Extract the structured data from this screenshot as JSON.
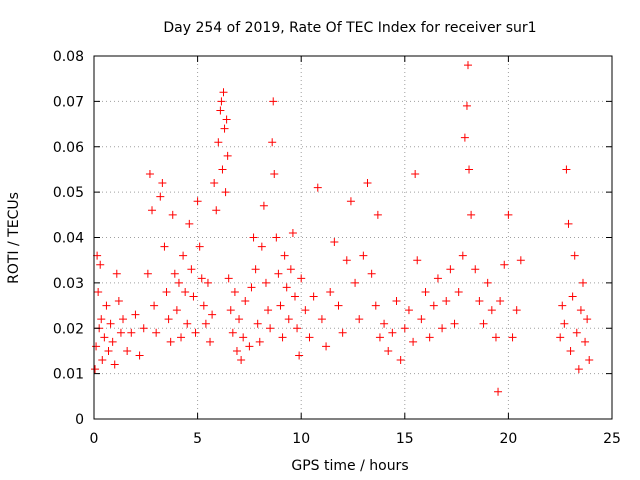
{
  "chart_data": {
    "type": "scatter",
    "title": "Day 254 of 2019, Rate Of TEC Index for receiver sur1",
    "xlabel": "GPS time / hours",
    "ylabel": "ROTI / TECUs",
    "xlim": [
      0,
      25
    ],
    "ylim": [
      0,
      0.08
    ],
    "xticks": [
      0,
      5,
      10,
      15,
      20,
      25
    ],
    "xtick_labels": [
      "0",
      "5",
      "10",
      "15",
      "20",
      "25"
    ],
    "yticks": [
      0,
      0.01,
      0.02,
      0.03,
      0.04,
      0.05,
      0.06,
      0.07,
      0.08
    ],
    "ytick_labels": [
      "0",
      "0.01",
      "0.02",
      "0.03",
      "0.04",
      "0.05",
      "0.06",
      "0.07",
      "0.08"
    ],
    "grid": true,
    "marker": "plus",
    "color": "#ff0000",
    "series": [
      {
        "points": [
          [
            0.05,
            0.011
          ],
          [
            0.1,
            0.016
          ],
          [
            0.15,
            0.036
          ],
          [
            0.2,
            0.028
          ],
          [
            0.25,
            0.02
          ],
          [
            0.3,
            0.034
          ],
          [
            0.35,
            0.022
          ],
          [
            0.4,
            0.013
          ],
          [
            0.5,
            0.018
          ],
          [
            0.6,
            0.025
          ],
          [
            0.7,
            0.015
          ],
          [
            0.8,
            0.021
          ],
          [
            0.9,
            0.017
          ],
          [
            1.0,
            0.012
          ],
          [
            1.1,
            0.032
          ],
          [
            1.2,
            0.026
          ],
          [
            1.3,
            0.019
          ],
          [
            1.4,
            0.022
          ],
          [
            1.6,
            0.015
          ],
          [
            1.8,
            0.019
          ],
          [
            2.0,
            0.023
          ],
          [
            2.2,
            0.014
          ],
          [
            2.4,
            0.02
          ],
          [
            2.6,
            0.032
          ],
          [
            2.7,
            0.054
          ],
          [
            2.8,
            0.046
          ],
          [
            2.9,
            0.025
          ],
          [
            3.0,
            0.019
          ],
          [
            3.2,
            0.049
          ],
          [
            3.3,
            0.052
          ],
          [
            3.4,
            0.038
          ],
          [
            3.5,
            0.028
          ],
          [
            3.6,
            0.022
          ],
          [
            3.7,
            0.017
          ],
          [
            3.8,
            0.045
          ],
          [
            3.9,
            0.032
          ],
          [
            4.0,
            0.024
          ],
          [
            4.1,
            0.03
          ],
          [
            4.2,
            0.018
          ],
          [
            4.3,
            0.036
          ],
          [
            4.4,
            0.028
          ],
          [
            4.5,
            0.021
          ],
          [
            4.6,
            0.043
          ],
          [
            4.7,
            0.033
          ],
          [
            4.8,
            0.027
          ],
          [
            4.9,
            0.019
          ],
          [
            5.0,
            0.048
          ],
          [
            5.1,
            0.038
          ],
          [
            5.2,
            0.031
          ],
          [
            5.3,
            0.025
          ],
          [
            5.4,
            0.021
          ],
          [
            5.5,
            0.03
          ],
          [
            5.6,
            0.017
          ],
          [
            5.7,
            0.023
          ],
          [
            5.8,
            0.052
          ],
          [
            5.9,
            0.046
          ],
          [
            6.0,
            0.061
          ],
          [
            6.1,
            0.068
          ],
          [
            6.15,
            0.07
          ],
          [
            6.2,
            0.055
          ],
          [
            6.25,
            0.072
          ],
          [
            6.3,
            0.064
          ],
          [
            6.35,
            0.05
          ],
          [
            6.4,
            0.066
          ],
          [
            6.45,
            0.058
          ],
          [
            6.5,
            0.031
          ],
          [
            6.6,
            0.024
          ],
          [
            6.7,
            0.019
          ],
          [
            6.8,
            0.028
          ],
          [
            6.9,
            0.015
          ],
          [
            7.0,
            0.022
          ],
          [
            7.1,
            0.013
          ],
          [
            7.2,
            0.018
          ],
          [
            7.3,
            0.026
          ],
          [
            7.5,
            0.016
          ],
          [
            7.6,
            0.029
          ],
          [
            7.7,
            0.04
          ],
          [
            7.8,
            0.033
          ],
          [
            7.9,
            0.021
          ],
          [
            8.0,
            0.017
          ],
          [
            8.1,
            0.038
          ],
          [
            8.2,
            0.047
          ],
          [
            8.3,
            0.03
          ],
          [
            8.4,
            0.024
          ],
          [
            8.5,
            0.02
          ],
          [
            8.6,
            0.061
          ],
          [
            8.65,
            0.07
          ],
          [
            8.7,
            0.054
          ],
          [
            8.8,
            0.04
          ],
          [
            8.9,
            0.032
          ],
          [
            9.0,
            0.025
          ],
          [
            9.1,
            0.018
          ],
          [
            9.2,
            0.036
          ],
          [
            9.3,
            0.029
          ],
          [
            9.4,
            0.022
          ],
          [
            9.5,
            0.033
          ],
          [
            9.6,
            0.041
          ],
          [
            9.7,
            0.027
          ],
          [
            9.8,
            0.02
          ],
          [
            9.9,
            0.014
          ],
          [
            10.0,
            0.031
          ],
          [
            10.2,
            0.024
          ],
          [
            10.4,
            0.018
          ],
          [
            10.6,
            0.027
          ],
          [
            10.8,
            0.051
          ],
          [
            11.0,
            0.022
          ],
          [
            11.2,
            0.016
          ],
          [
            11.4,
            0.028
          ],
          [
            11.6,
            0.039
          ],
          [
            11.8,
            0.025
          ],
          [
            12.0,
            0.019
          ],
          [
            12.2,
            0.035
          ],
          [
            12.4,
            0.048
          ],
          [
            12.6,
            0.03
          ],
          [
            12.8,
            0.022
          ],
          [
            13.0,
            0.036
          ],
          [
            13.2,
            0.052
          ],
          [
            13.4,
            0.032
          ],
          [
            13.6,
            0.025
          ],
          [
            13.7,
            0.045
          ],
          [
            13.8,
            0.018
          ],
          [
            14.0,
            0.021
          ],
          [
            14.2,
            0.015
          ],
          [
            14.4,
            0.019
          ],
          [
            14.6,
            0.026
          ],
          [
            14.8,
            0.013
          ],
          [
            15.0,
            0.02
          ],
          [
            15.2,
            0.024
          ],
          [
            15.4,
            0.017
          ],
          [
            15.5,
            0.054
          ],
          [
            15.6,
            0.035
          ],
          [
            15.8,
            0.022
          ],
          [
            16.0,
            0.028
          ],
          [
            16.2,
            0.018
          ],
          [
            16.4,
            0.025
          ],
          [
            16.6,
            0.031
          ],
          [
            16.8,
            0.02
          ],
          [
            17.0,
            0.026
          ],
          [
            17.2,
            0.033
          ],
          [
            17.4,
            0.021
          ],
          [
            17.6,
            0.028
          ],
          [
            17.8,
            0.036
          ],
          [
            17.9,
            0.062
          ],
          [
            18.0,
            0.069
          ],
          [
            18.05,
            0.078
          ],
          [
            18.1,
            0.055
          ],
          [
            18.2,
            0.045
          ],
          [
            18.4,
            0.033
          ],
          [
            18.6,
            0.026
          ],
          [
            18.8,
            0.021
          ],
          [
            19.0,
            0.03
          ],
          [
            19.2,
            0.024
          ],
          [
            19.4,
            0.018
          ],
          [
            19.5,
            0.006
          ],
          [
            19.6,
            0.026
          ],
          [
            19.8,
            0.034
          ],
          [
            20.0,
            0.045
          ],
          [
            20.2,
            0.018
          ],
          [
            20.4,
            0.024
          ],
          [
            20.6,
            0.035
          ],
          [
            22.5,
            0.018
          ],
          [
            22.6,
            0.025
          ],
          [
            22.7,
            0.021
          ],
          [
            22.8,
            0.055
          ],
          [
            22.9,
            0.043
          ],
          [
            23.0,
            0.015
          ],
          [
            23.1,
            0.027
          ],
          [
            23.2,
            0.036
          ],
          [
            23.3,
            0.019
          ],
          [
            23.4,
            0.011
          ],
          [
            23.5,
            0.024
          ],
          [
            23.6,
            0.03
          ],
          [
            23.7,
            0.017
          ],
          [
            23.8,
            0.022
          ],
          [
            23.9,
            0.013
          ]
        ]
      }
    ]
  }
}
